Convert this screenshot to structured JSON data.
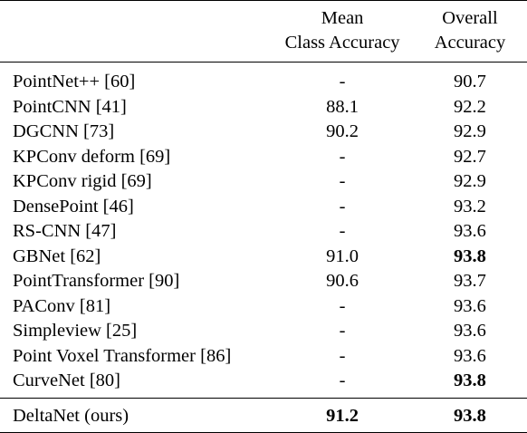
{
  "table": {
    "headers": {
      "method": "",
      "mean_class_accuracy": [
        "Mean",
        "Class Accuracy"
      ],
      "overall_accuracy": [
        "Overall",
        "Accuracy"
      ]
    },
    "rows": [
      {
        "method": "PointNet++ [60]",
        "mca": "-",
        "oa": "90.7"
      },
      {
        "method": "PointCNN [41]",
        "mca": "88.1",
        "oa": "92.2"
      },
      {
        "method": "DGCNN [73]",
        "mca": "90.2",
        "oa": "92.9"
      },
      {
        "method": "KPConv deform [69]",
        "mca": "-",
        "oa": "92.7"
      },
      {
        "method": "KPConv rigid [69]",
        "mca": "-",
        "oa": "92.9"
      },
      {
        "method": "DensePoint [46]",
        "mca": "-",
        "oa": "93.2"
      },
      {
        "method": "RS-CNN [47]",
        "mca": "-",
        "oa": "93.6"
      },
      {
        "method": "GBNet [62]",
        "mca": "91.0",
        "oa": "93.8"
      },
      {
        "method": "PointTransformer [90]",
        "mca": "90.6",
        "oa": "93.7"
      },
      {
        "method": "PAConv [81]",
        "mca": "-",
        "oa": "93.6"
      },
      {
        "method": "Simpleview [25]",
        "mca": "-",
        "oa": "93.6"
      },
      {
        "method": "Point Voxel Transformer [86]",
        "mca": "-",
        "oa": "93.6"
      },
      {
        "method": "CurveNet [80]",
        "mca": "-",
        "oa": "93.8"
      }
    ],
    "ours": {
      "method": "DeltaNet (ours)",
      "mca": "91.2",
      "oa": "93.8"
    },
    "bold_cells": [
      "rows.7.oa",
      "rows.12.oa",
      "ours.mca",
      "ours.oa"
    ]
  }
}
